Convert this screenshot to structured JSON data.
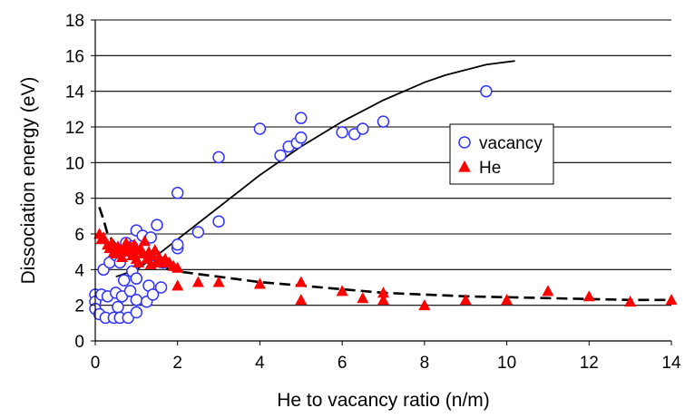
{
  "chart_data": {
    "type": "scatter",
    "title": "",
    "xlabel": "He to vacancy ratio (n/m)",
    "ylabel": "Dissociation energy (eV)",
    "xlim": [
      0,
      14
    ],
    "ylim": [
      0,
      18
    ],
    "x_ticks": [
      0,
      2,
      4,
      6,
      8,
      10,
      12,
      14
    ],
    "y_ticks": [
      0,
      2,
      4,
      6,
      8,
      10,
      12,
      14,
      16,
      18
    ],
    "grid": "horizontal",
    "legend_position": "right",
    "series": [
      {
        "name": "vacancy",
        "marker": "open-circle",
        "color": "#3333ff",
        "points": [
          [
            0,
            2.6
          ],
          [
            0,
            2.2
          ],
          [
            0,
            1.8
          ],
          [
            0.1,
            1.5
          ],
          [
            0.15,
            2.6
          ],
          [
            0.2,
            4.0
          ],
          [
            0.25,
            1.3
          ],
          [
            0.3,
            2.5
          ],
          [
            0.35,
            4.4
          ],
          [
            0.45,
            1.3
          ],
          [
            0.5,
            2.7
          ],
          [
            0.5,
            4.8
          ],
          [
            0.55,
            1.9
          ],
          [
            0.6,
            1.3
          ],
          [
            0.6,
            4.4
          ],
          [
            0.65,
            2.5
          ],
          [
            0.7,
            3.4
          ],
          [
            0.75,
            5.5
          ],
          [
            0.8,
            1.3
          ],
          [
            0.85,
            2.8
          ],
          [
            0.9,
            3.9
          ],
          [
            0.9,
            5.3
          ],
          [
            1.0,
            1.6
          ],
          [
            1.0,
            2.3
          ],
          [
            1.0,
            3.5
          ],
          [
            1.0,
            6.2
          ],
          [
            1.1,
            4.6
          ],
          [
            1.15,
            5.9
          ],
          [
            1.25,
            2.2
          ],
          [
            1.3,
            3.1
          ],
          [
            1.35,
            5.8
          ],
          [
            1.4,
            2.6
          ],
          [
            1.45,
            4.8
          ],
          [
            1.5,
            6.5
          ],
          [
            1.6,
            3.0
          ],
          [
            1.65,
            4.4
          ],
          [
            2.0,
            5.2
          ],
          [
            2.0,
            5.4
          ],
          [
            2.0,
            8.3
          ],
          [
            2.5,
            6.1
          ],
          [
            3.0,
            6.7
          ],
          [
            3.0,
            10.3
          ],
          [
            4.0,
            11.9
          ],
          [
            4.5,
            10.4
          ],
          [
            4.7,
            10.9
          ],
          [
            4.9,
            11.1
          ],
          [
            5.0,
            11.4
          ],
          [
            5.0,
            12.5
          ],
          [
            6.0,
            11.7
          ],
          [
            6.3,
            11.6
          ],
          [
            6.5,
            11.9
          ],
          [
            7.0,
            12.3
          ],
          [
            9.5,
            14.0
          ]
        ]
      },
      {
        "name": "He",
        "marker": "filled-triangle",
        "color": "#ff0000",
        "points": [
          [
            0.1,
            6.0
          ],
          [
            0.15,
            5.7
          ],
          [
            0.2,
            5.8
          ],
          [
            0.3,
            5.4
          ],
          [
            0.35,
            5.2
          ],
          [
            0.4,
            5.5
          ],
          [
            0.45,
            5.0
          ],
          [
            0.5,
            4.9
          ],
          [
            0.55,
            5.3
          ],
          [
            0.6,
            5.1
          ],
          [
            0.65,
            4.7
          ],
          [
            0.7,
            5.2
          ],
          [
            0.75,
            5.5
          ],
          [
            0.8,
            5.0
          ],
          [
            0.85,
            5.3
          ],
          [
            0.9,
            4.8
          ],
          [
            0.95,
            5.4
          ],
          [
            1.0,
            4.6
          ],
          [
            1.0,
            5.1
          ],
          [
            1.05,
            4.4
          ],
          [
            1.1,
            5.2
          ],
          [
            1.15,
            4.9
          ],
          [
            1.2,
            5.6
          ],
          [
            1.25,
            4.6
          ],
          [
            1.3,
            5.0
          ],
          [
            1.35,
            4.3
          ],
          [
            1.4,
            4.8
          ],
          [
            1.45,
            5.1
          ],
          [
            1.5,
            4.5
          ],
          [
            1.55,
            4.7
          ],
          [
            1.6,
            4.4
          ],
          [
            1.7,
            4.6
          ],
          [
            1.8,
            4.4
          ],
          [
            1.9,
            4.2
          ],
          [
            2.0,
            4.1
          ],
          [
            2.0,
            3.1
          ],
          [
            2.5,
            3.3
          ],
          [
            3.0,
            3.3
          ],
          [
            4.0,
            3.2
          ],
          [
            5.0,
            3.3
          ],
          [
            5.0,
            2.3
          ],
          [
            6.0,
            2.8
          ],
          [
            6.5,
            2.4
          ],
          [
            7.0,
            2.7
          ],
          [
            7.0,
            2.3
          ],
          [
            8.0,
            2.0
          ],
          [
            9.0,
            2.3
          ],
          [
            10.0,
            2.3
          ],
          [
            11.0,
            2.8
          ],
          [
            12.0,
            2.5
          ],
          [
            13.0,
            2.2
          ],
          [
            14.0,
            2.3
          ]
        ]
      }
    ],
    "fit_curves": [
      {
        "style": "solid",
        "color": "#000000",
        "points": [
          [
            0.5,
            3.6
          ],
          [
            1,
            4.0
          ],
          [
            1.5,
            4.8
          ],
          [
            2,
            5.7
          ],
          [
            2.5,
            6.6
          ],
          [
            3,
            7.5
          ],
          [
            3.5,
            8.4
          ],
          [
            4,
            9.3
          ],
          [
            4.5,
            10.1
          ],
          [
            5,
            10.9
          ],
          [
            5.5,
            11.6
          ],
          [
            6,
            12.3
          ],
          [
            6.5,
            12.9
          ],
          [
            7,
            13.5
          ],
          [
            7.5,
            14.0
          ],
          [
            8,
            14.5
          ],
          [
            8.5,
            14.9
          ],
          [
            9,
            15.2
          ],
          [
            9.5,
            15.5
          ],
          [
            10.2,
            15.7
          ]
        ]
      },
      {
        "style": "dashed",
        "color": "#000000",
        "points": [
          [
            0.1,
            7.5
          ],
          [
            0.2,
            6.8
          ],
          [
            0.3,
            6.0
          ],
          [
            0.5,
            5.4
          ],
          [
            0.7,
            5.0
          ],
          [
            1,
            4.6
          ],
          [
            1.5,
            4.2
          ],
          [
            2,
            3.9
          ],
          [
            3,
            3.6
          ],
          [
            4,
            3.3
          ],
          [
            5,
            3.1
          ],
          [
            6,
            2.9
          ],
          [
            7,
            2.7
          ],
          [
            8,
            2.6
          ],
          [
            9,
            2.5
          ],
          [
            10,
            2.45
          ],
          [
            11,
            2.4
          ],
          [
            12,
            2.35
          ],
          [
            13,
            2.3
          ],
          [
            14,
            2.3
          ]
        ]
      }
    ]
  }
}
